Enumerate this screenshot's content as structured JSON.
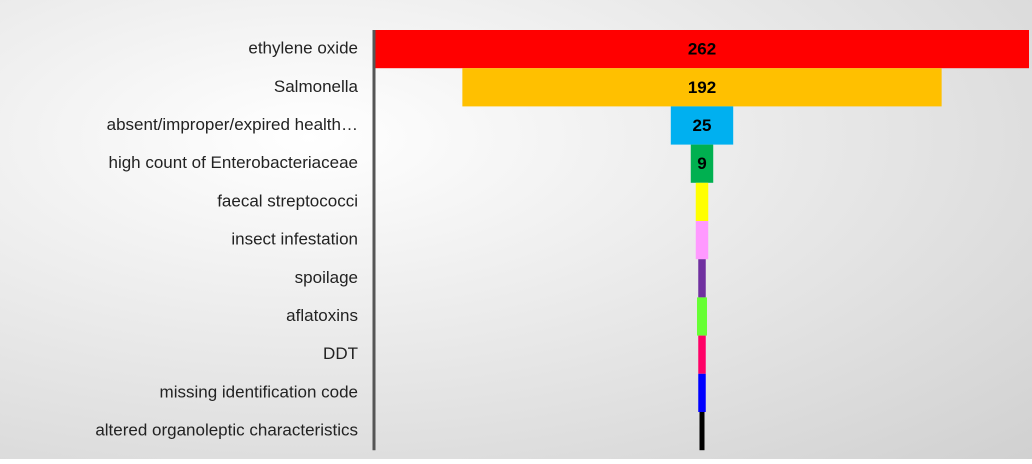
{
  "chart_data": {
    "type": "funnel",
    "categories": [
      "ethylene oxide",
      "Salmonella",
      "absent/improper/expired health…",
      "high count of Enterobacteriaceae",
      "faecal streptococci",
      "insect infestation",
      "spoilage",
      "aflatoxins",
      "DDT",
      "missing identification code",
      "altered organoleptic characteristics"
    ],
    "values": [
      262,
      192,
      25,
      9,
      5,
      5,
      3,
      4,
      3,
      3,
      2
    ],
    "value_labels": [
      "262",
      "192",
      "25",
      "9",
      null,
      null,
      null,
      null,
      null,
      null,
      null
    ],
    "colors": [
      "#ff0000",
      "#ffc000",
      "#00b0f0",
      "#00b050",
      "#ffff00",
      "#ff99ff",
      "#7030a0",
      "#66ff33",
      "#ff0066",
      "#0000ff",
      "#000000"
    ],
    "xlim": [
      0,
      262
    ]
  }
}
